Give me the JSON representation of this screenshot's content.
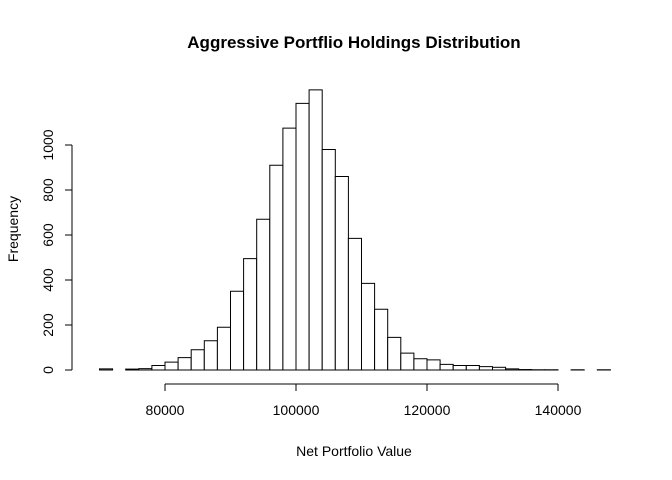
{
  "chart_data": {
    "type": "bar",
    "title": "Aggressive Portflio Holdings Distribution",
    "xlabel": "Net Portfolio  Value",
    "ylabel": "Frequency",
    "xlim": [
      68000,
      150000
    ],
    "ylim": [
      0,
      1250
    ],
    "x_ticks": [
      80000,
      100000,
      120000,
      140000
    ],
    "y_ticks": [
      0,
      200,
      400,
      600,
      800,
      1000
    ],
    "bin_width": 2000,
    "bins": [
      {
        "x0": 70000,
        "x1": 72000,
        "count": 5
      },
      {
        "x0": 72000,
        "x1": 74000,
        "count": 0
      },
      {
        "x0": 74000,
        "x1": 76000,
        "count": 4
      },
      {
        "x0": 76000,
        "x1": 78000,
        "count": 6
      },
      {
        "x0": 78000,
        "x1": 80000,
        "count": 20
      },
      {
        "x0": 80000,
        "x1": 82000,
        "count": 35
      },
      {
        "x0": 82000,
        "x1": 84000,
        "count": 55
      },
      {
        "x0": 84000,
        "x1": 86000,
        "count": 90
      },
      {
        "x0": 86000,
        "x1": 88000,
        "count": 130
      },
      {
        "x0": 88000,
        "x1": 90000,
        "count": 190
      },
      {
        "x0": 90000,
        "x1": 92000,
        "count": 350
      },
      {
        "x0": 92000,
        "x1": 94000,
        "count": 495
      },
      {
        "x0": 94000,
        "x1": 96000,
        "count": 670
      },
      {
        "x0": 96000,
        "x1": 98000,
        "count": 910
      },
      {
        "x0": 98000,
        "x1": 100000,
        "count": 1075
      },
      {
        "x0": 100000,
        "x1": 102000,
        "count": 1185
      },
      {
        "x0": 102000,
        "x1": 104000,
        "count": 1245
      },
      {
        "x0": 104000,
        "x1": 106000,
        "count": 980
      },
      {
        "x0": 106000,
        "x1": 108000,
        "count": 860
      },
      {
        "x0": 108000,
        "x1": 110000,
        "count": 585
      },
      {
        "x0": 110000,
        "x1": 112000,
        "count": 385
      },
      {
        "x0": 112000,
        "x1": 114000,
        "count": 270
      },
      {
        "x0": 114000,
        "x1": 116000,
        "count": 145
      },
      {
        "x0": 116000,
        "x1": 118000,
        "count": 75
      },
      {
        "x0": 118000,
        "x1": 120000,
        "count": 50
      },
      {
        "x0": 120000,
        "x1": 122000,
        "count": 45
      },
      {
        "x0": 122000,
        "x1": 124000,
        "count": 25
      },
      {
        "x0": 124000,
        "x1": 126000,
        "count": 20
      },
      {
        "x0": 126000,
        "x1": 128000,
        "count": 20
      },
      {
        "x0": 128000,
        "x1": 130000,
        "count": 15
      },
      {
        "x0": 130000,
        "x1": 132000,
        "count": 12
      },
      {
        "x0": 132000,
        "x1": 134000,
        "count": 5
      },
      {
        "x0": 134000,
        "x1": 136000,
        "count": 2
      },
      {
        "x0": 136000,
        "x1": 138000,
        "count": 1
      },
      {
        "x0": 138000,
        "x1": 140000,
        "count": 1
      },
      {
        "x0": 140000,
        "x1": 142000,
        "count": 0
      },
      {
        "x0": 142000,
        "x1": 144000,
        "count": 1
      },
      {
        "x0": 144000,
        "x1": 146000,
        "count": 0
      },
      {
        "x0": 146000,
        "x1": 148000,
        "count": 1
      }
    ],
    "grid": false,
    "legend": "none"
  }
}
